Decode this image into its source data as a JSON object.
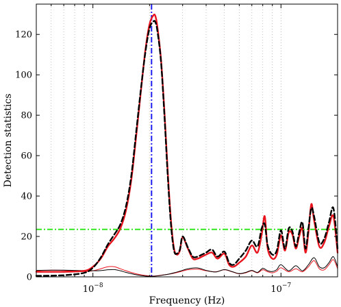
{
  "chart_data": {
    "type": "line",
    "title": "",
    "xlabel": "Frequency  (Hz)",
    "ylabel": "Detection statistics",
    "xscale": "log",
    "xlim": [
      5e-09,
      2e-07
    ],
    "ylim": [
      0,
      135
    ],
    "grid": "dotted vertical",
    "legend": "none",
    "y_ticks": [
      0,
      20,
      40,
      60,
      80,
      100,
      120
    ],
    "y_tick_labels": [
      "0",
      "20",
      "40",
      "60",
      "80",
      "100",
      "120"
    ],
    "x_major_ticks": [
      1e-08,
      1e-07
    ],
    "x_tick_labels": [
      "10−8",
      "10−7"
    ],
    "x_minor_ticks": [
      6e-09,
      7e-09,
      8e-09,
      9e-09,
      2e-08,
      3e-08,
      4e-08,
      5e-08,
      6e-08,
      7e-08,
      8e-08,
      9e-08,
      2e-07
    ],
    "colors": {
      "red": "#e8141e",
      "black": "#000000",
      "vline": "#1c1cf0",
      "threshold": "#33e61f"
    },
    "vertical_line": {
      "x": 2.05e-08
    },
    "threshold_line": {
      "y": 23.5
    },
    "series": [
      {
        "style": "red-solid-thick",
        "x": [
          5e-09,
          7e-09,
          9e-09,
          1e-08,
          1.1e-08,
          1.2e-08,
          1.3e-08,
          1.4e-08,
          1.5e-08,
          1.6e-08,
          1.7e-08,
          1.8e-08,
          1.9e-08,
          2e-08,
          2.1e-08,
          2.15e-08,
          2.2e-08,
          2.3e-08,
          2.4e-08,
          2.5e-08,
          2.6e-08,
          2.7e-08,
          2.8e-08,
          2.9e-08,
          3e-08,
          3.2e-08,
          3.4e-08,
          3.6e-08,
          3.8e-08,
          4e-08,
          4.3e-08,
          4.6e-08,
          5e-08,
          5.3e-08,
          5.6e-08,
          6e-08,
          6.5e-08,
          7e-08,
          7.5e-08,
          7.9e-08,
          8.2e-08,
          8.5e-08,
          9e-08,
          9.5e-08,
          1e-07,
          1.05e-07,
          1.1e-07,
          1.15e-07,
          1.2e-07,
          1.25e-07,
          1.3e-07,
          1.35e-07,
          1.4e-07,
          1.45e-07,
          1.5e-07,
          1.6e-07,
          1.7e-07,
          1.8e-07,
          1.9e-07,
          2e-07
        ],
        "y": [
          2.5,
          2.5,
          3.0,
          5.0,
          9.0,
          15.0,
          19.0,
          24.0,
          33.0,
          48.0,
          70.0,
          92.0,
          112.0,
          125.0,
          129.5,
          129.0,
          124.0,
          108.0,
          82.0,
          52.0,
          28.0,
          14.0,
          11.0,
          13.0,
          19.5,
          14.0,
          9.0,
          9.0,
          10.0,
          11.0,
          12.0,
          9.0,
          11.5,
          6.0,
          5.0,
          7.0,
          10.0,
          15.5,
          12.0,
          21.0,
          30.0,
          14.0,
          9.0,
          11.0,
          20.5,
          13.0,
          22.0,
          21.0,
          14.0,
          20.0,
          24.0,
          12.0,
          22.0,
          36.0,
          28.0,
          15.0,
          17.0,
          25.0,
          30.0,
          12.0
        ]
      },
      {
        "style": "black-dashed-thick",
        "x": [
          5e-09,
          7e-09,
          9e-09,
          1e-08,
          1.1e-08,
          1.2e-08,
          1.3e-08,
          1.4e-08,
          1.5e-08,
          1.6e-08,
          1.7e-08,
          1.8e-08,
          1.9e-08,
          2e-08,
          2.1e-08,
          2.15e-08,
          2.2e-08,
          2.3e-08,
          2.4e-08,
          2.5e-08,
          2.6e-08,
          2.7e-08,
          2.8e-08,
          2.9e-08,
          3e-08,
          3.2e-08,
          3.4e-08,
          3.6e-08,
          3.8e-08,
          4e-08,
          4.3e-08,
          4.6e-08,
          5e-08,
          5.3e-08,
          5.6e-08,
          6e-08,
          6.5e-08,
          7e-08,
          7.5e-08,
          7.9e-08,
          8.2e-08,
          8.5e-08,
          9e-08,
          9.5e-08,
          1e-07,
          1.05e-07,
          1.1e-07,
          1.15e-07,
          1.2e-07,
          1.25e-07,
          1.3e-07,
          1.35e-07,
          1.4e-07,
          1.45e-07,
          1.5e-07,
          1.6e-07,
          1.7e-07,
          1.8e-07,
          1.9e-07,
          2e-07
        ],
        "y": [
          0.5,
          0.8,
          2.0,
          4.5,
          9.5,
          16.0,
          21.0,
          26.0,
          35.0,
          50.0,
          72.0,
          93.0,
          111.0,
          123.0,
          126.5,
          126.0,
          122.0,
          107.0,
          80.0,
          50.0,
          26.0,
          13.0,
          11.5,
          13.5,
          20.0,
          14.5,
          10.0,
          10.0,
          11.0,
          12.0,
          13.5,
          10.0,
          12.5,
          7.0,
          6.0,
          9.0,
          13.0,
          18.0,
          15.0,
          24.0,
          26.0,
          15.5,
          11.0,
          13.0,
          23.0,
          14.0,
          24.0,
          22.5,
          15.0,
          22.0,
          27.0,
          14.0,
          24.0,
          34.0,
          30.0,
          17.0,
          19.0,
          27.0,
          34.0,
          14.0
        ]
      },
      {
        "style": "red-solid-thin",
        "x": [
          5e-09,
          6e-09,
          7e-09,
          8e-09,
          9e-09,
          1e-08,
          1.1e-08,
          1.2e-08,
          1.3e-08,
          1.4e-08,
          1.5e-08,
          1.7e-08,
          1.9e-08,
          2.1e-08,
          2.3e-08,
          2.6e-08,
          2.9e-08,
          3.2e-08,
          3.6e-08,
          4e-08,
          4.5e-08,
          5e-08,
          5.5e-08,
          6e-08,
          6.5e-08,
          7e-08,
          7.5e-08,
          8e-08,
          8.5e-08,
          9e-08,
          9.5e-08,
          1e-07,
          1.1e-07,
          1.2e-07,
          1.3e-07,
          1.4e-07,
          1.5e-07,
          1.6e-07,
          1.7e-07,
          1.8e-07,
          1.9e-07,
          2e-07
        ],
        "y": [
          3.0,
          3.3,
          3.2,
          2.8,
          2.6,
          3.0,
          4.0,
          5.0,
          5.0,
          4.0,
          3.0,
          1.5,
          0.7,
          0.4,
          0.8,
          1.5,
          2.5,
          3.5,
          3.8,
          3.0,
          2.5,
          3.5,
          2.5,
          1.5,
          2.0,
          3.0,
          2.0,
          3.5,
          2.5,
          2.0,
          2.8,
          4.5,
          2.5,
          4.0,
          2.5,
          5.0,
          8.0,
          4.0,
          3.5,
          6.0,
          8.5,
          4.0
        ]
      },
      {
        "style": "black-solid-thin",
        "x": [
          5e-09,
          6e-09,
          7e-09,
          8e-09,
          9e-09,
          1e-08,
          1.1e-08,
          1.2e-08,
          1.3e-08,
          1.4e-08,
          1.5e-08,
          1.7e-08,
          1.9e-08,
          2.1e-08,
          2.3e-08,
          2.6e-08,
          2.9e-08,
          3.2e-08,
          3.6e-08,
          4e-08,
          4.5e-08,
          5e-08,
          5.5e-08,
          6e-08,
          6.5e-08,
          7e-08,
          7.5e-08,
          8e-08,
          8.5e-08,
          9e-08,
          9.5e-08,
          1e-07,
          1.1e-07,
          1.2e-07,
          1.3e-07,
          1.4e-07,
          1.5e-07,
          1.6e-07,
          1.7e-07,
          1.8e-07,
          1.9e-07,
          2e-07
        ],
        "y": [
          3.2,
          3.3,
          3.3,
          3.2,
          3.1,
          3.0,
          3.1,
          3.5,
          3.6,
          3.0,
          2.2,
          1.0,
          0.4,
          0.3,
          0.7,
          1.6,
          2.8,
          4.0,
          4.4,
          3.2,
          2.4,
          3.6,
          2.6,
          1.6,
          2.2,
          3.2,
          2.2,
          4.2,
          3.0,
          2.6,
          3.6,
          6.0,
          3.0,
          5.5,
          3.0,
          6.0,
          9.5,
          5.0,
          4.5,
          7.0,
          10.0,
          5.0
        ]
      }
    ]
  }
}
